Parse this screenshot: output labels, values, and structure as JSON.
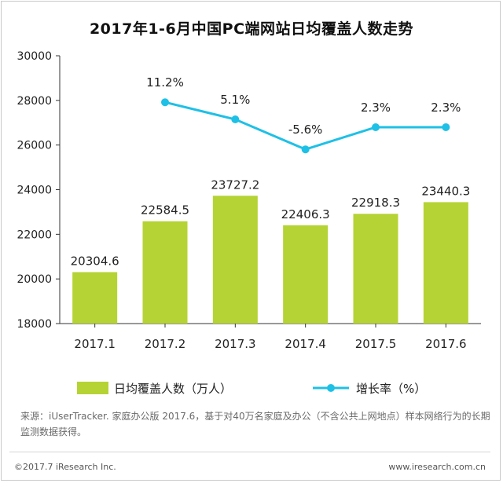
{
  "chart_data": {
    "type": "bar",
    "title": "2017年1-6月中国PC端网站日均覆盖人数走势",
    "categories": [
      "2017.1",
      "2017.2",
      "2017.3",
      "2017.4",
      "2017.5",
      "2017.6"
    ],
    "ylim": [
      18000,
      30000
    ],
    "y_ticks": [
      18000,
      20000,
      22000,
      24000,
      26000,
      28000,
      30000
    ],
    "grid": false,
    "legend_position": "bottom",
    "series": [
      {
        "name": "日均覆盖人数（万人）",
        "type": "bar",
        "color": "#b5d334",
        "values": [
          20304.6,
          22584.5,
          23727.2,
          22406.3,
          22918.3,
          23440.3
        ],
        "labels": [
          "20304.6",
          "22584.5",
          "23727.2",
          "22406.3",
          "22918.3",
          "23440.3"
        ]
      },
      {
        "name": "增长率（%）",
        "type": "line",
        "color": "#1ec0e6",
        "values": [
          null,
          11.2,
          5.1,
          -5.6,
          2.3,
          2.3
        ],
        "labels": [
          "",
          "11.2%",
          "5.1%",
          "-5.6%",
          "2.3%",
          "2.3%"
        ]
      }
    ]
  },
  "source_text": "来源：iUserTracker. 家庭办公版 2017.6，基于对40万名家庭及办公（不含公共上网地点）样本网络行为的长期监测数据获得。",
  "footer": {
    "copyright": "©2017.7 iResearch Inc.",
    "website": "www.iresearch.com.cn"
  }
}
